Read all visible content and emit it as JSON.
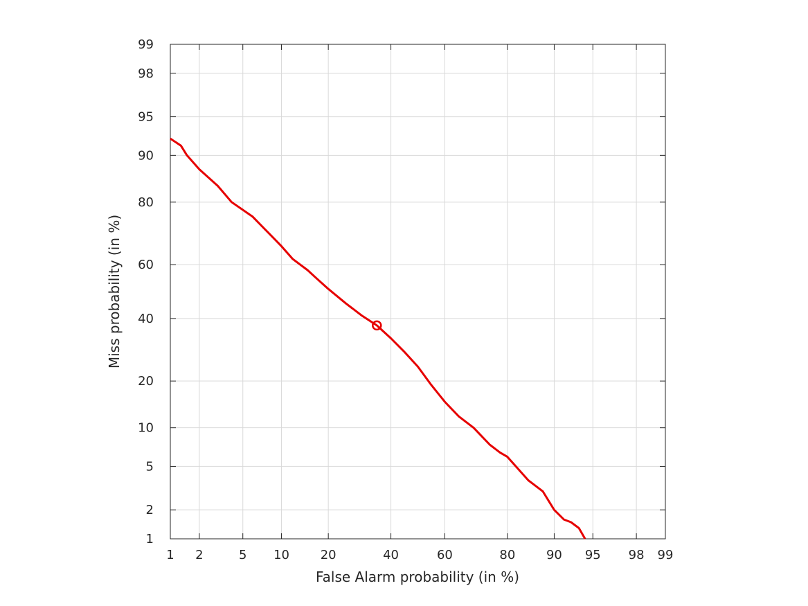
{
  "chart_data": {
    "type": "line",
    "title": "",
    "xlabel": "False Alarm probability (in %)",
    "ylabel": "Miss probability (in %)",
    "x_scale": "normal-deviate (probit)",
    "y_scale": "normal-deviate (probit)",
    "xlim": [
      1,
      99
    ],
    "ylim": [
      1,
      99
    ],
    "grid": true,
    "x_ticks": [
      1,
      2,
      5,
      10,
      20,
      40,
      60,
      80,
      90,
      95,
      98,
      99
    ],
    "y_ticks": [
      1,
      2,
      5,
      10,
      20,
      40,
      60,
      80,
      90,
      95,
      98,
      99
    ],
    "series": [
      {
        "color": "#e60000",
        "x": [
          1.0,
          1.3,
          1.5,
          2.0,
          3.0,
          4.0,
          6.0,
          8.0,
          10.0,
          12.0,
          15.0,
          17.0,
          20.0,
          25.0,
          30.0,
          35.0,
          40.0,
          45.0,
          50.0,
          55.0,
          60.0,
          65.0,
          70.0,
          75.0,
          78.0,
          80.0,
          85.0,
          88.0,
          90.0,
          91.5,
          92.5,
          93.5,
          94.2
        ],
        "y": [
          92.5,
          91.5,
          90.0,
          87.5,
          84.0,
          80.0,
          76.0,
          71.0,
          66.5,
          62.0,
          58.0,
          55.0,
          51.0,
          45.5,
          41.0,
          37.5,
          33.0,
          28.5,
          24.0,
          19.0,
          15.0,
          12.0,
          10.0,
          7.5,
          6.5,
          6.0,
          3.8,
          3.0,
          2.0,
          1.6,
          1.5,
          1.3,
          1.0
        ]
      }
    ],
    "markers": [
      {
        "shape": "circle",
        "color": "#e60000",
        "x": 35.0,
        "y": 37.5
      }
    ]
  }
}
